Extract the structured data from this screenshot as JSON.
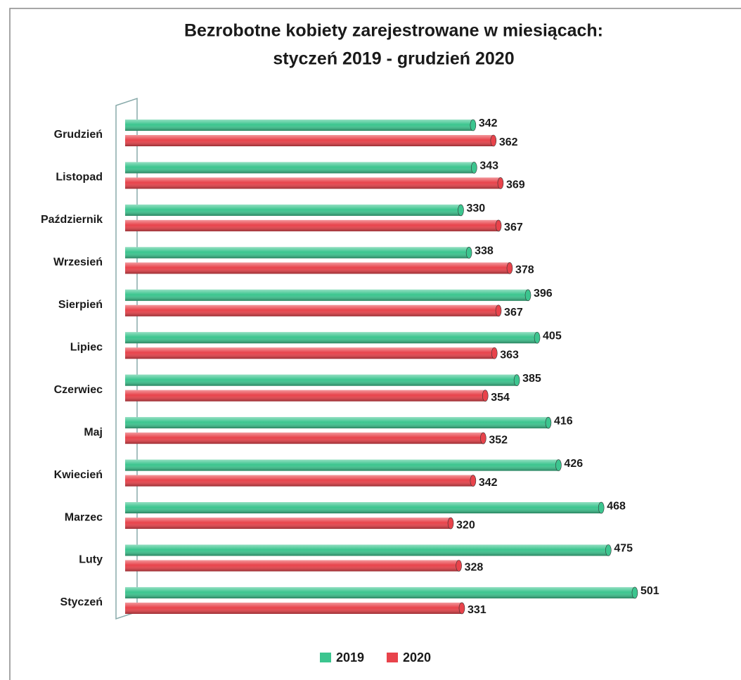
{
  "chart_data": {
    "type": "bar",
    "orientation": "horizontal",
    "title": [
      "Bezrobotne kobiety zarejestrowane w miesiącach:",
      "styczeń 2019 - grudzień 2020"
    ],
    "categories": [
      "Grudzień",
      "Listopad",
      "Październik",
      "Wrzesień",
      "Sierpień",
      "Lipiec",
      "Czerwiec",
      "Maj",
      "Kwiecień",
      "Marzec",
      "Luty",
      "Styczeń"
    ],
    "series": [
      {
        "name": "2019",
        "color": "#3cc58f",
        "values": [
          342,
          343,
          330,
          338,
          396,
          405,
          385,
          416,
          426,
          468,
          475,
          501
        ]
      },
      {
        "name": "2020",
        "color": "#e8434b",
        "values": [
          362,
          369,
          367,
          378,
          367,
          363,
          354,
          352,
          342,
          320,
          328,
          331
        ]
      }
    ],
    "legend": "bottom"
  }
}
